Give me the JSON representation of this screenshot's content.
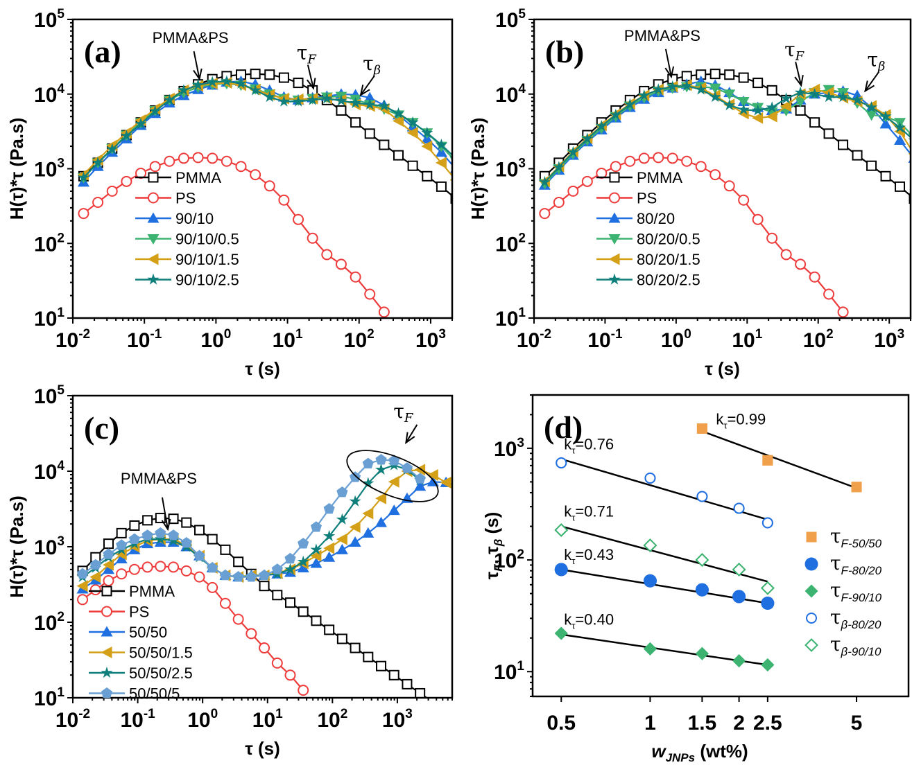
{
  "figure": {
    "colors": {
      "PMMA": "#000000",
      "PS": "#ee3b3b",
      "blend": "#1f6fe0",
      "jnp_low": "#3cb371",
      "jnp_mid": "#d4a017",
      "jnp_high": "#0e7f7a",
      "jnp_max": "#6a9fd4",
      "tauF5050": "#f0a04b"
    }
  },
  "chart_data": [
    {
      "id": "a",
      "type": "line",
      "panel_label": "(a)",
      "xlabel": "τ (s)",
      "ylabel": "H(τ)*τ (Pa.s)",
      "xscale": "log",
      "yscale": "log",
      "xlim": [
        0.01,
        2000
      ],
      "ylim": [
        10,
        100000
      ],
      "xticks": [
        "10^-2",
        "10^-1",
        "10^0",
        "10^1",
        "10^2",
        "10^3"
      ],
      "yticks": [
        "10^1",
        "10^2",
        "10^3",
        "10^4",
        "10^5"
      ],
      "annotations": [
        {
          "text": "PMMA&PS",
          "arrow_to_x": 0.55,
          "arrow_to_y": 14000
        },
        {
          "text": "τF",
          "arrow_to_x": 22,
          "arrow_to_y": 10500
        },
        {
          "text": "τβ",
          "arrow_to_x": 110,
          "arrow_to_y": 7500
        }
      ],
      "legend": [
        "PMMA",
        "PS",
        "90/10",
        "90/10/0.5",
        "90/10/1.5",
        "90/10/2.5"
      ],
      "legend_position": "lower-left",
      "log_x_start": -1.85,
      "log_x_step": 0.2,
      "series": [
        {
          "name": "PMMA",
          "marker": "square-open",
          "color": "#000000",
          "log_y": [
            2.9,
            3.08,
            3.27,
            3.45,
            3.62,
            3.78,
            3.92,
            4.04,
            4.13,
            4.2,
            4.24,
            4.26,
            4.27,
            4.26,
            4.22,
            4.15,
            4.05,
            3.92,
            3.78,
            3.62,
            3.47,
            3.32,
            3.18,
            3.04,
            2.9,
            2.76,
            2.6
          ]
        },
        {
          "name": "PS",
          "marker": "circle-open",
          "color": "#ee3b3b",
          "log_y": [
            2.4,
            2.55,
            2.7,
            2.83,
            2.94,
            3.03,
            3.1,
            3.14,
            3.15,
            3.14,
            3.1,
            3.03,
            2.92,
            2.77,
            2.58,
            2.32,
            2.07,
            1.85,
            1.72,
            1.55,
            1.32,
            1.08
          ]
        },
        {
          "name": "90/10",
          "marker": "triangle-up",
          "color": "#1f6fe0",
          "log_y": [
            2.82,
            3.03,
            3.22,
            3.4,
            3.58,
            3.74,
            3.88,
            3.98,
            4.06,
            4.12,
            4.16,
            4.17,
            4.13,
            4.05,
            3.96,
            3.92,
            3.95,
            3.97,
            4.0,
            3.99,
            3.95,
            3.85,
            3.72,
            3.56,
            3.4,
            3.22,
            3.0
          ]
        },
        {
          "name": "90/10/0.5",
          "marker": "triangle-down",
          "color": "#3cb371",
          "log_y": [
            2.88,
            3.08,
            3.27,
            3.45,
            3.62,
            3.78,
            3.92,
            4.02,
            4.09,
            4.13,
            4.14,
            4.12,
            4.07,
            4.0,
            3.94,
            3.92,
            3.94,
            3.96,
            3.97,
            3.93,
            3.86,
            3.8,
            3.72,
            3.62,
            3.48,
            3.3,
            3.1
          ]
        },
        {
          "name": "90/10/1.5",
          "marker": "triangle-left",
          "color": "#d4a017",
          "log_y": [
            2.92,
            3.12,
            3.31,
            3.48,
            3.65,
            3.8,
            3.94,
            4.05,
            4.11,
            4.14,
            4.15,
            4.12,
            4.06,
            3.99,
            3.94,
            3.93,
            3.94,
            3.94,
            3.92,
            3.86,
            3.84,
            3.8,
            3.64,
            3.48,
            3.3,
            3.08,
            2.85
          ]
        },
        {
          "name": "90/10/2.5",
          "marker": "star",
          "color": "#0e7f7a",
          "log_y": [
            2.88,
            3.08,
            3.26,
            3.44,
            3.6,
            3.77,
            3.92,
            4.05,
            4.12,
            4.16,
            4.17,
            4.14,
            4.05,
            3.96,
            3.9,
            3.9,
            3.92,
            3.94,
            3.91,
            3.88,
            3.86,
            3.84,
            3.74,
            3.62,
            3.48,
            3.32,
            3.14
          ]
        }
      ]
    },
    {
      "id": "b",
      "type": "line",
      "panel_label": "(b)",
      "xlabel": "τ (s)",
      "ylabel": "H(τ)*τ (Pa.s)",
      "xscale": "log",
      "yscale": "log",
      "xlim": [
        0.01,
        2000
      ],
      "ylim": [
        10,
        100000
      ],
      "xticks": [
        "10^-2",
        "10^-1",
        "10^0",
        "10^1",
        "10^2",
        "10^3"
      ],
      "yticks": [
        "10^1",
        "10^2",
        "10^3",
        "10^4",
        "10^5"
      ],
      "annotations": [
        {
          "text": "PMMA&PS",
          "arrow_to_x": 0.8,
          "arrow_to_y": 15000
        },
        {
          "text": "τF",
          "arrow_to_x": 55,
          "arrow_to_y": 11500
        },
        {
          "text": "τβ",
          "arrow_to_x": 480,
          "arrow_to_y": 8500
        }
      ],
      "legend": [
        "PMMA",
        "PS",
        "80/20",
        "80/20/0.5",
        "80/20/1.5",
        "80/20/2.5"
      ],
      "legend_position": "lower-left",
      "log_x_start": -1.85,
      "log_x_step": 0.2,
      "series": [
        {
          "name": "PMMA",
          "marker": "square-open",
          "color": "#000000",
          "log_y": [
            2.9,
            3.08,
            3.27,
            3.45,
            3.62,
            3.78,
            3.92,
            4.04,
            4.13,
            4.2,
            4.24,
            4.26,
            4.27,
            4.26,
            4.22,
            4.15,
            4.05,
            3.92,
            3.78,
            3.62,
            3.47,
            3.32,
            3.18,
            3.04,
            2.9,
            2.76,
            2.6
          ]
        },
        {
          "name": "PS",
          "marker": "circle-open",
          "color": "#ee3b3b",
          "log_y": [
            2.4,
            2.55,
            2.7,
            2.83,
            2.94,
            3.03,
            3.1,
            3.14,
            3.15,
            3.14,
            3.1,
            3.03,
            2.92,
            2.77,
            2.58,
            2.32,
            2.07,
            1.85,
            1.72,
            1.55,
            1.32,
            1.08
          ]
        },
        {
          "name": "80/20",
          "marker": "triangle-up",
          "color": "#1f6fe0",
          "log_y": [
            2.78,
            2.98,
            3.18,
            3.36,
            3.52,
            3.68,
            3.82,
            3.93,
            4.02,
            4.08,
            4.13,
            4.17,
            4.12,
            4.02,
            3.9,
            3.82,
            3.78,
            3.8,
            3.92,
            4.0,
            4.02,
            4.04,
            3.98,
            3.82,
            3.6,
            3.38,
            3.14
          ]
        },
        {
          "name": "80/20/0.5",
          "marker": "triangle-down",
          "color": "#3cb371",
          "log_y": [
            2.8,
            3.0,
            3.2,
            3.38,
            3.54,
            3.7,
            3.84,
            3.95,
            4.04,
            4.08,
            4.1,
            4.1,
            4.08,
            4.0,
            3.9,
            3.82,
            3.76,
            3.78,
            3.9,
            4.02,
            4.06,
            4.02,
            3.88,
            3.72,
            3.7,
            3.62,
            3.42
          ]
        },
        {
          "name": "80/20/1.5",
          "marker": "triangle-left",
          "color": "#d4a017",
          "log_y": [
            2.83,
            3.03,
            3.23,
            3.41,
            3.58,
            3.73,
            3.87,
            3.98,
            4.06,
            4.1,
            4.12,
            4.08,
            3.98,
            3.86,
            3.74,
            3.68,
            3.7,
            3.84,
            4.0,
            4.06,
            4.02,
            3.95,
            3.9,
            3.84,
            3.72,
            3.5,
            3.2
          ]
        },
        {
          "name": "80/20/2.5",
          "marker": "star",
          "color": "#0e7f7a",
          "log_y": [
            2.82,
            3.02,
            3.22,
            3.4,
            3.57,
            3.72,
            3.86,
            3.98,
            4.06,
            4.1,
            4.11,
            4.06,
            3.96,
            3.85,
            3.79,
            3.78,
            3.82,
            3.94,
            4.02,
            4.0,
            3.96,
            3.96,
            3.92,
            3.82,
            3.7,
            3.55,
            3.38
          ]
        }
      ]
    },
    {
      "id": "c",
      "type": "line",
      "panel_label": "(c)",
      "xlabel": "τ (s)",
      "ylabel": "H(τ)*τ (Pa.s)",
      "xscale": "log",
      "yscale": "log",
      "xlim": [
        0.01,
        7000
      ],
      "ylim": [
        10,
        100000
      ],
      "xticks": [
        "10^-2",
        "10^-1",
        "10^0",
        "10^1",
        "10^2",
        "10^3"
      ],
      "yticks": [
        "10^1",
        "10^2",
        "10^3",
        "10^4",
        "10^5"
      ],
      "annotations": [
        {
          "text": "PMMA&PS",
          "arrow_to_x": 0.27,
          "arrow_to_y": 1500
        },
        {
          "text": "τF",
          "arrow_to_x": 1500,
          "arrow_to_y": 15000
        }
      ],
      "ellipse_note": "ellipse around τF peaks",
      "legend": [
        "PMMA",
        "PS",
        "50/50",
        "50/50/1.5",
        "50/50/2.5",
        "50/50/5"
      ],
      "legend_position": "lower-left",
      "log_x_start": -1.85,
      "log_x_step": 0.2,
      "series": [
        {
          "name": "PMMA",
          "marker": "square-open",
          "color": "#000000",
          "log_y": [
            2.68,
            2.86,
            3.04,
            3.18,
            3.28,
            3.35,
            3.38,
            3.37,
            3.32,
            3.22,
            3.1,
            2.96,
            2.8,
            2.64,
            2.48,
            2.36,
            2.26,
            2.14,
            2.02,
            1.9,
            1.78,
            1.66,
            1.54,
            1.42,
            1.3,
            1.18,
            1.06,
            0.94
          ]
        },
        {
          "name": "PS",
          "marker": "circle-open",
          "color": "#ee3b3b",
          "log_y": [
            2.3,
            2.43,
            2.55,
            2.64,
            2.7,
            2.73,
            2.74,
            2.73,
            2.68,
            2.6,
            2.46,
            2.25,
            2.04,
            1.85,
            1.66,
            1.46,
            1.3,
            1.1
          ]
        },
        {
          "name": "50/50",
          "marker": "triangle-up",
          "color": "#1f6fe0",
          "log_y": [
            2.44,
            2.56,
            2.7,
            2.84,
            2.96,
            3.04,
            3.06,
            3.06,
            3.0,
            2.88,
            2.72,
            2.62,
            2.6,
            2.62,
            2.62,
            2.64,
            2.66,
            2.72,
            2.78,
            2.86,
            2.96,
            3.06,
            3.18,
            3.32,
            3.48,
            3.64,
            3.8,
            3.86,
            3.85,
            3.8
          ]
        },
        {
          "name": "50/50/1.5",
          "marker": "triangle-left",
          "color": "#d4a017",
          "log_y": [
            2.48,
            2.6,
            2.76,
            2.9,
            3.0,
            3.08,
            3.1,
            3.1,
            3.02,
            2.88,
            2.72,
            2.62,
            2.6,
            2.62,
            2.62,
            2.65,
            2.7,
            2.78,
            2.88,
            2.98,
            3.1,
            3.26,
            3.44,
            3.64,
            3.86,
            4.0,
            4.02,
            3.95,
            3.85,
            3.7
          ]
        },
        {
          "name": "50/50/2.5",
          "marker": "star",
          "color": "#0e7f7a",
          "log_y": [
            2.6,
            2.72,
            2.86,
            2.96,
            3.04,
            3.1,
            3.1,
            3.08,
            3.0,
            2.86,
            2.72,
            2.62,
            2.6,
            2.61,
            2.62,
            2.64,
            2.7,
            2.8,
            2.96,
            3.14,
            3.36,
            3.6,
            3.84,
            4.02,
            4.08,
            4.02,
            3.88
          ]
        },
        {
          "name": "50/50/5",
          "marker": "pentagon",
          "color": "#6a9fd4",
          "log_y": [
            2.64,
            2.76,
            2.9,
            3.02,
            3.1,
            3.15,
            3.18,
            3.15,
            3.05,
            2.88,
            2.72,
            2.62,
            2.6,
            2.6,
            2.62,
            2.7,
            2.84,
            3.04,
            3.26,
            3.5,
            3.72,
            3.92,
            4.1,
            4.15,
            4.14,
            4.04,
            3.9
          ]
        }
      ]
    },
    {
      "id": "d",
      "type": "scatter",
      "panel_label": "(d)",
      "xlabel": "wJNPs (wt%)",
      "ylabel": "τF, τβ (s)",
      "xscale": "log",
      "yscale": "log",
      "xlim": [
        0.4,
        7.5
      ],
      "ylim": [
        6,
        3000
      ],
      "xticks": [
        "0.5",
        "1",
        "1.5",
        "2",
        "2.5",
        "5"
      ],
      "yticks": [
        "10^1",
        "10^2",
        "10^3"
      ],
      "legend": [
        "τF-50/50",
        "τF-80/20",
        "τF-90/10",
        "τβ-80/20",
        "τβ-90/10"
      ],
      "legend_position": "right",
      "series": [
        {
          "name": "τF-50/50",
          "marker": "square",
          "color": "#f0a04b",
          "x": [
            1.5,
            2.5,
            5
          ],
          "y": [
            1500,
            780,
            450
          ],
          "fit": {
            "x": [
              1.5,
              5
            ],
            "y": [
              1420,
              440
            ]
          },
          "k_label": "kτ=0.99"
        },
        {
          "name": "τF-80/20",
          "marker": "circle",
          "color": "#1f6fe0",
          "x": [
            0.5,
            1,
            1.5,
            2,
            2.5
          ],
          "y": [
            82,
            65,
            54,
            47,
            41
          ],
          "fit": {
            "x": [
              0.5,
              2.5
            ],
            "y": [
              82,
              41
            ]
          },
          "k_label": "kτ=0.43"
        },
        {
          "name": "τF-90/10",
          "marker": "diamond",
          "color": "#3cb371",
          "x": [
            0.5,
            1,
            1.5,
            2,
            2.5
          ],
          "y": [
            22,
            16,
            14.5,
            12.5,
            11.5
          ],
          "fit": {
            "x": [
              0.5,
              2.5
            ],
            "y": [
              21.5,
              11.5
            ]
          },
          "k_label": "kτ=0.40"
        },
        {
          "name": "τβ-80/20",
          "marker": "circle-open",
          "color": "#1f6fe0",
          "x": [
            0.5,
            1,
            1.5,
            2,
            2.5
          ],
          "y": [
            740,
            540,
            370,
            290,
            215
          ],
          "fit": {
            "x": [
              0.5,
              2.5
            ],
            "y": [
              800,
              230
            ]
          },
          "k_label": "kτ=0.76"
        },
        {
          "name": "τβ-90/10",
          "marker": "diamond-open",
          "color": "#3cb371",
          "x": [
            0.5,
            1,
            1.5,
            2,
            2.5
          ],
          "y": [
            185,
            135,
            100,
            82,
            56
          ],
          "fit": {
            "x": [
              0.5,
              2.5
            ],
            "y": [
              200,
              64
            ]
          },
          "k_label": "kτ=0.71"
        }
      ]
    }
  ]
}
